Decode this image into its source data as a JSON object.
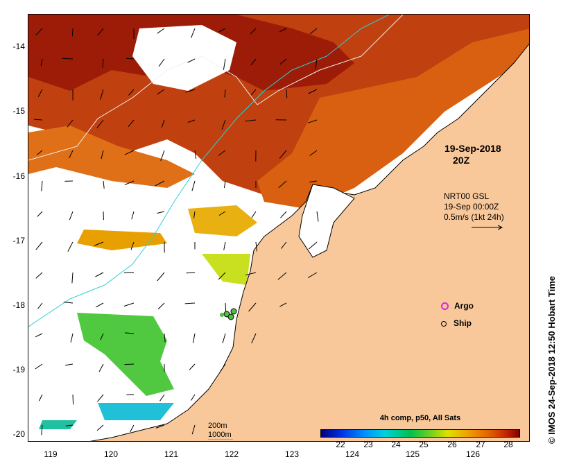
{
  "map": {
    "y_ticks": [
      "-14",
      "-15",
      "-16",
      "-17",
      "-18",
      "-19",
      "-20"
    ],
    "x_ticks": [
      "119",
      "120",
      "121",
      "122",
      "123",
      "124",
      "125",
      "126"
    ],
    "date_line1": "19-Sep-2018",
    "date_line2": "20Z",
    "current": {
      "line1": "NRT00 GSL",
      "line2": "19-Sep 00:00Z",
      "line3": "0.5m/s (1kt 24h)"
    },
    "legend": {
      "argo": "Argo",
      "ship": "Ship",
      "argo_color": "#e020e0"
    },
    "depth": {
      "line1": "200m",
      "line2": "1000m",
      "color": "#30d0d0"
    },
    "land_color": "#f8c89a"
  },
  "colorbar": {
    "title": "4h comp, p50, All Sats",
    "ticks": [
      "22",
      "23",
      "24",
      "25",
      "26",
      "27",
      "28"
    ]
  },
  "credit": "© IMOS 24-Sep-2018 12:50 Hobart Time"
}
